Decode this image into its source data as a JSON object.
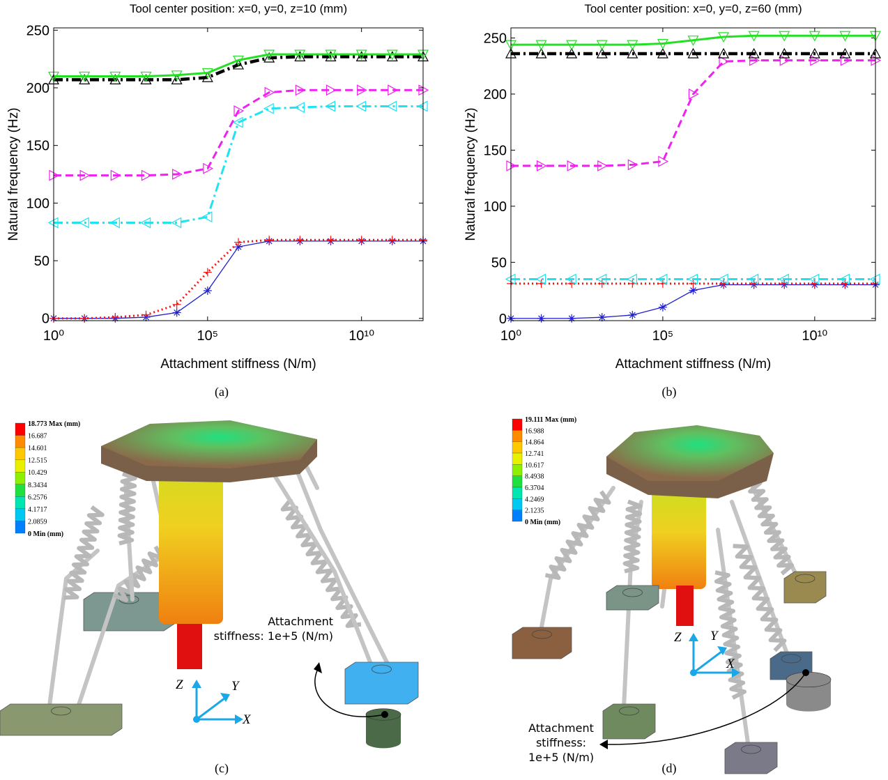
{
  "chart_data": [
    {
      "type": "line",
      "title": "Tool center position: x=0, y=0, z=10 (mm)",
      "x_label": "Attachment stiffness (N/m)",
      "y_label": "Natural frequency (Hz)",
      "xscale": "log",
      "x": [
        1,
        10,
        100,
        1000,
        10000,
        100000,
        1000000,
        10000000,
        100000000,
        1000000000,
        10000000000,
        100000000000,
        1000000000000
      ],
      "xlim": [
        1,
        1000000000000
      ],
      "xticks": [
        {
          "value": 1,
          "label": "10⁰"
        },
        {
          "value": 100000,
          "label": "10⁵"
        },
        {
          "value": 10000000000,
          "label": "10¹⁰"
        }
      ],
      "ylim": [
        -2,
        252
      ],
      "yticks": [
        0,
        50,
        100,
        150,
        200,
        250
      ],
      "series": [
        {
          "color": "#1f1fd0",
          "linestyle": "solid",
          "width": 1.3,
          "marker": "star",
          "values": [
            0,
            0,
            0,
            1,
            5,
            24,
            62,
            67,
            67,
            67,
            67,
            67,
            67
          ]
        },
        {
          "color": "#ff1010",
          "linestyle": "dotted",
          "width": 3,
          "marker": "plus",
          "values": [
            0,
            0,
            1,
            3,
            12,
            40,
            66,
            68,
            68,
            68,
            68,
            68,
            68
          ]
        },
        {
          "color": "#1fe3f0",
          "linestyle": "dashdot",
          "width": 3,
          "marker": "triangle-left",
          "values": [
            83,
            83,
            83,
            83,
            83,
            88,
            170,
            182,
            183,
            184,
            184,
            184,
            184
          ]
        },
        {
          "color": "#f020f0",
          "linestyle": "dashed",
          "width": 3,
          "marker": "triangle-right",
          "values": [
            124,
            124,
            124,
            124,
            125,
            130,
            180,
            196,
            198,
            198,
            198,
            198,
            198
          ]
        },
        {
          "color": "#000000",
          "linestyle": "dashdot",
          "width": 4.5,
          "marker": "triangle-up",
          "values": [
            207,
            207,
            207,
            207,
            207,
            209,
            220,
            226,
            227,
            227,
            227,
            227,
            227
          ]
        },
        {
          "color": "#22e022",
          "linestyle": "solid",
          "width": 3,
          "marker": "triangle-down",
          "values": [
            210,
            210,
            210,
            210,
            211,
            213,
            224,
            229,
            229,
            229,
            229,
            229,
            229
          ]
        }
      ]
    },
    {
      "type": "line",
      "title": "Tool center position: x=0, y=0, z=60 (mm)",
      "x_label": "Attachment stiffness (N/m)",
      "y_label": "Natural frequency (Hz)",
      "xscale": "log",
      "x": [
        1,
        10,
        100,
        1000,
        10000,
        100000,
        1000000,
        10000000,
        100000000,
        1000000000,
        10000000000,
        100000000000,
        1000000000000
      ],
      "xlim": [
        1,
        1000000000000
      ],
      "xticks": [
        {
          "value": 1,
          "label": "10⁰"
        },
        {
          "value": 100000,
          "label": "10⁵"
        },
        {
          "value": 10000000000,
          "label": "10¹⁰"
        }
      ],
      "ylim": [
        -2,
        259
      ],
      "yticks": [
        0,
        50,
        100,
        150,
        200,
        250
      ],
      "series": [
        {
          "color": "#1f1fd0",
          "linestyle": "solid",
          "width": 1.3,
          "marker": "star",
          "values": [
            0,
            0,
            0,
            1,
            3,
            10,
            25,
            30,
            30,
            30,
            30,
            30,
            30
          ]
        },
        {
          "color": "#ff1010",
          "linestyle": "dotted",
          "width": 3,
          "marker": "plus",
          "values": [
            31,
            31,
            31,
            31,
            31,
            31,
            31,
            31,
            31,
            31,
            31,
            31,
            31
          ]
        },
        {
          "color": "#1fe3f0",
          "linestyle": "dashdot",
          "width": 3,
          "marker": "triangle-left",
          "values": [
            35,
            35,
            35,
            35,
            35,
            35,
            35,
            35,
            35,
            35,
            35,
            35,
            35
          ]
        },
        {
          "color": "#f020f0",
          "linestyle": "dashed",
          "width": 3,
          "marker": "triangle-right",
          "values": [
            136,
            136,
            136,
            136,
            137,
            140,
            200,
            229,
            230,
            230,
            230,
            230,
            230
          ]
        },
        {
          "color": "#000000",
          "linestyle": "dashdot",
          "width": 4.5,
          "marker": "triangle-up",
          "values": [
            236,
            236,
            236,
            236,
            236,
            236,
            236,
            236,
            236,
            236,
            236,
            236,
            236
          ]
        },
        {
          "color": "#22e022",
          "linestyle": "solid",
          "width": 3,
          "marker": "triangle-down",
          "values": [
            244,
            244,
            244,
            244,
            244,
            245,
            248,
            251,
            252,
            252,
            252,
            252,
            252
          ]
        }
      ]
    }
  ],
  "captions": [
    "(a)",
    "(b)",
    "(c)",
    "(d)"
  ],
  "renders": [
    {
      "colorbar": [
        "18.773 Max (mm)",
        "16.687",
        "14.601",
        "12.515",
        "10.429",
        "8.3434",
        "6.2576",
        "4.1717",
        "2.0859",
        "0 Min (mm)"
      ],
      "annotation": [
        "Attachment",
        "stiffness: 1e+5 (N/m)"
      ],
      "axes": [
        "Z",
        "Y",
        "X"
      ]
    },
    {
      "colorbar": [
        "19.111 Max (mm)",
        "16.988",
        "14.864",
        "12.741",
        "10.617",
        "8.4938",
        "6.3704",
        "4.2469",
        "2.1235",
        "0 Min (mm)"
      ],
      "annotation": [
        "Attachment",
        "stiffness:",
        "1e+5 (N/m)"
      ],
      "axes": [
        "Z",
        "Y",
        "X"
      ]
    }
  ]
}
